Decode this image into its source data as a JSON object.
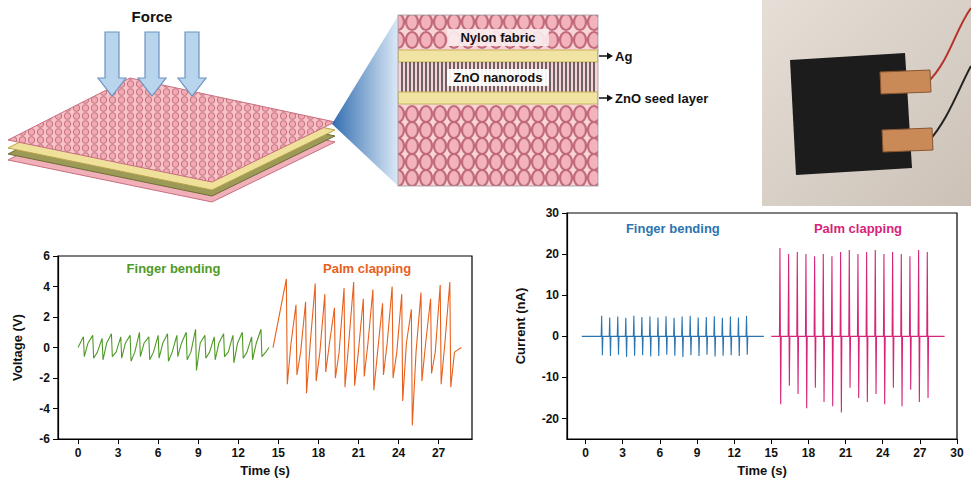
{
  "diagram": {
    "force_label": "Force",
    "inset": {
      "fabric": "Nylon fabric",
      "rods": "ZnO nanorods",
      "pointers": [
        "Ag",
        "ZnO seed layer"
      ]
    }
  },
  "chart_data": [
    {
      "type": "line",
      "x_label": "Time (s)",
      "y_label": "Voltage (V)",
      "xlim": [
        -1.5,
        29.5
      ],
      "xticks": [
        0,
        3,
        6,
        9,
        12,
        15,
        18,
        21,
        24,
        27
      ],
      "ylim": [
        -6,
        6
      ],
      "yticks": [
        -6,
        -4,
        -2,
        0,
        2,
        4,
        6
      ],
      "grid": false,
      "series": [
        {
          "name": "Finger bending",
          "color": "#4f9a26",
          "x": [
            0,
            0.4,
            0.47,
            0.75,
            1.1,
            1.17,
            1.45,
            1.8,
            1.87,
            2.15,
            2.5,
            2.57,
            2.85,
            3.2,
            3.27,
            3.55,
            3.9,
            3.97,
            4.25,
            4.6,
            4.67,
            4.95,
            5.3,
            5.37,
            5.65,
            6.0,
            6.07,
            6.35,
            6.7,
            6.77,
            7.05,
            7.4,
            7.47,
            7.75,
            8.1,
            8.17,
            8.45,
            8.8,
            8.87,
            9.15,
            9.5,
            9.57,
            9.85,
            10.2,
            10.27,
            10.55,
            10.9,
            10.97,
            11.25,
            11.6,
            11.67,
            11.95,
            12.3,
            12.37,
            12.65,
            13.0,
            13.07,
            13.35,
            13.7,
            13.77,
            14.05,
            14.3
          ],
          "values": [
            0,
            0.7,
            -0.6,
            0.3,
            0.8,
            -0.7,
            -0.3,
            0.6,
            -0.8,
            0.3,
            0.9,
            -0.6,
            -0.3,
            0.7,
            -0.7,
            0.3,
            0.8,
            -0.9,
            -0.3,
            1.0,
            -0.6,
            0.3,
            0.7,
            -0.8,
            -0.3,
            0.8,
            -0.7,
            0.3,
            0.9,
            -0.9,
            -0.3,
            0.8,
            -0.6,
            0.3,
            1.0,
            -0.8,
            -0.3,
            1.2,
            -1.5,
            0.3,
            0.8,
            -0.7,
            -0.3,
            0.7,
            -0.8,
            0.3,
            0.9,
            -0.6,
            -0.3,
            0.8,
            -1.0,
            0.3,
            1.0,
            -0.7,
            -0.3,
            0.7,
            -0.8,
            0.3,
            1.2,
            -0.6,
            -0.3,
            0
          ]
        },
        {
          "name": "Palm clapping",
          "color": "#e8601c",
          "x": [
            14.6,
            15.6,
            15.67,
            15.95,
            16.32,
            16.39,
            16.67,
            17.04,
            17.11,
            17.39,
            17.76,
            17.83,
            18.11,
            18.48,
            18.55,
            18.83,
            19.2,
            19.27,
            19.55,
            19.92,
            19.99,
            20.27,
            20.64,
            20.71,
            20.99,
            21.36,
            21.43,
            21.71,
            22.08,
            22.15,
            22.43,
            22.8,
            22.87,
            23.15,
            23.52,
            23.59,
            23.87,
            24.24,
            24.31,
            24.59,
            24.96,
            25.03,
            25.31,
            25.68,
            25.75,
            26.03,
            26.4,
            26.47,
            26.75,
            27.12,
            27.19,
            27.47,
            27.84,
            27.91,
            28.19,
            28.7
          ],
          "values": [
            0,
            4.5,
            -2.4,
            0.3,
            2.8,
            -1.8,
            -0.3,
            3.0,
            -3.0,
            0.3,
            4.2,
            -2.2,
            -0.3,
            3.5,
            -1.6,
            0.3,
            2.6,
            -2.0,
            -0.3,
            3.9,
            -2.6,
            0.3,
            4.3,
            -2.5,
            -0.3,
            3.2,
            -1.9,
            0.3,
            3.8,
            -2.8,
            -0.3,
            2.9,
            -1.8,
            0.3,
            4.0,
            -2.0,
            -0.3,
            3.5,
            -3.5,
            0.3,
            2.5,
            -5.1,
            -0.3,
            3.6,
            -2.2,
            0.3,
            3.2,
            -1.7,
            -0.3,
            4.1,
            -2.4,
            0.3,
            4.3,
            -2.6,
            -0.3,
            0
          ]
        }
      ]
    },
    {
      "type": "line",
      "x_label": "Time (s)",
      "y_label": "Current (nA)",
      "xlim": [
        -1.5,
        30
      ],
      "xticks": [
        0,
        3,
        6,
        9,
        12,
        15,
        18,
        21,
        24,
        27,
        30
      ],
      "ylim": [
        -25,
        30
      ],
      "yticks": [
        -20,
        -10,
        0,
        10,
        20,
        30
      ],
      "grid": false,
      "series": [
        {
          "name": "Finger bending",
          "color": "#2b74b0",
          "x": [
            -0.3,
            1.26,
            1.3,
            1.36,
            1.4,
            1.91,
            1.95,
            2.01,
            2.05,
            2.56,
            2.6,
            2.66,
            2.7,
            3.21,
            3.25,
            3.31,
            3.35,
            3.86,
            3.9,
            3.96,
            4.0,
            4.51,
            4.55,
            4.61,
            4.65,
            5.16,
            5.2,
            5.26,
            5.3,
            5.81,
            5.85,
            5.91,
            5.95,
            6.46,
            6.5,
            6.56,
            6.6,
            7.11,
            7.15,
            7.21,
            7.25,
            7.76,
            7.8,
            7.86,
            7.9,
            8.41,
            8.45,
            8.51,
            8.55,
            9.06,
            9.1,
            9.16,
            9.2,
            9.71,
            9.75,
            9.81,
            9.85,
            10.36,
            10.4,
            10.46,
            10.5,
            11.01,
            11.05,
            11.11,
            11.15,
            11.66,
            11.7,
            11.76,
            11.8,
            12.31,
            12.35,
            12.41,
            12.45,
            12.96,
            13.0,
            13.06,
            13.1,
            14.4
          ],
          "values": [
            0,
            0,
            5.0,
            -4.6,
            0,
            0,
            4.6,
            -4.8,
            0,
            0,
            4.8,
            -4.5,
            0,
            0,
            4.5,
            -5.0,
            0,
            0,
            5.0,
            -4.7,
            0,
            0,
            4.7,
            -4.6,
            0,
            0,
            4.8,
            -4.9,
            0,
            0,
            4.6,
            -4.8,
            0,
            0,
            4.9,
            -4.5,
            0,
            0,
            4.5,
            -4.7,
            0,
            0,
            4.8,
            -5.0,
            0,
            0,
            5.0,
            -4.6,
            0,
            0,
            4.6,
            -4.8,
            0,
            0,
            4.7,
            -4.5,
            0,
            0,
            4.9,
            -4.9,
            0,
            0,
            4.5,
            -4.7,
            0,
            0,
            4.8,
            -4.6,
            0,
            0,
            4.6,
            -4.8,
            0,
            0,
            5.0,
            -4.5,
            0,
            0
          ]
        },
        {
          "name": "Palm clapping",
          "color": "#d6247a",
          "x": [
            15.0,
            15.66,
            15.7,
            15.76,
            15.8,
            16.36,
            16.4,
            16.46,
            16.5,
            17.06,
            17.1,
            17.16,
            17.2,
            17.76,
            17.8,
            17.86,
            17.9,
            18.46,
            18.5,
            18.56,
            18.6,
            19.16,
            19.2,
            19.26,
            19.3,
            19.86,
            19.9,
            19.96,
            20.0,
            20.56,
            20.6,
            20.66,
            20.7,
            21.26,
            21.3,
            21.36,
            21.4,
            21.96,
            22.0,
            22.06,
            22.1,
            22.66,
            22.7,
            22.76,
            22.8,
            23.36,
            23.4,
            23.46,
            23.5,
            24.06,
            24.1,
            24.16,
            24.2,
            24.76,
            24.8,
            24.86,
            24.9,
            25.46,
            25.5,
            25.56,
            25.6,
            26.16,
            26.2,
            26.26,
            26.3,
            26.86,
            26.9,
            26.96,
            27.0,
            27.56,
            27.6,
            27.66,
            27.7,
            29.0
          ],
          "values": [
            0,
            0,
            21.5,
            -16.5,
            0,
            0,
            20.0,
            -12.0,
            0,
            0,
            20.5,
            -14.0,
            0,
            0,
            20.0,
            -17.5,
            0,
            0,
            19.5,
            -12.5,
            0,
            0,
            20.0,
            -16.0,
            0,
            0,
            19.5,
            -17.0,
            0,
            0,
            20.5,
            -18.5,
            0,
            0,
            21.0,
            -12.5,
            0,
            0,
            20.0,
            -15.0,
            0,
            0,
            20.5,
            -16.0,
            0,
            0,
            21.0,
            -14.0,
            0,
            0,
            20.0,
            -16.5,
            0,
            0,
            20.5,
            -12.5,
            0,
            0,
            20.0,
            -17.0,
            0,
            0,
            19.5,
            -13.0,
            0,
            0,
            21.0,
            -16.0,
            0,
            0,
            20.5,
            -15.0,
            0,
            0
          ]
        }
      ]
    }
  ]
}
